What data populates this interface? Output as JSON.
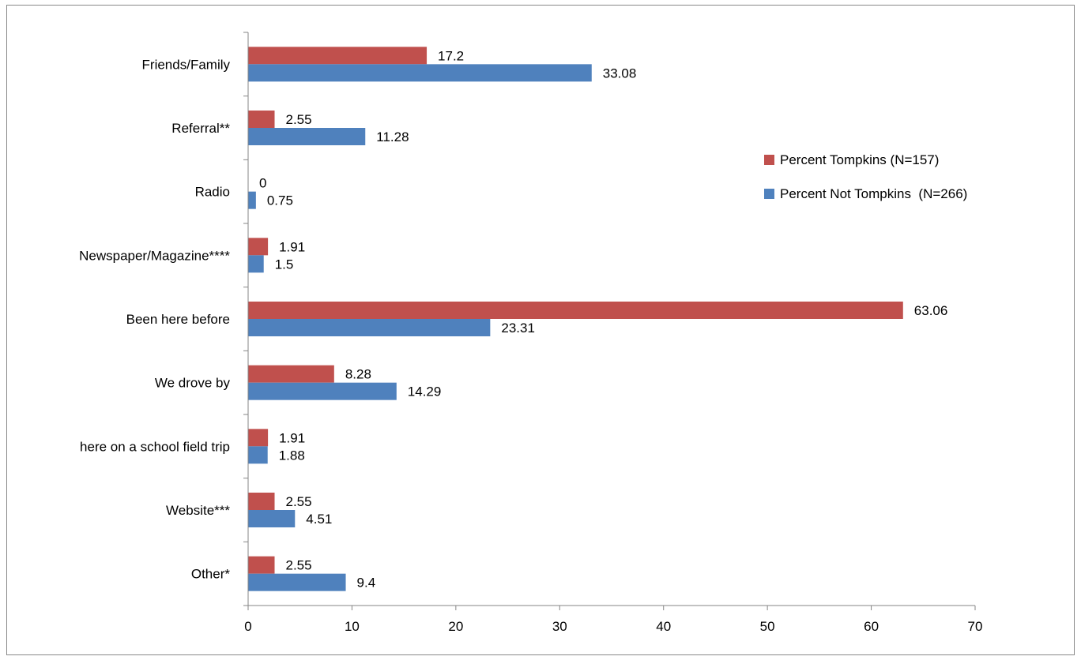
{
  "chart_data": {
    "type": "bar",
    "orientation": "horizontal",
    "categories": [
      "Friends/Family",
      "Referral**",
      "Radio",
      "Newspaper/Magazine****",
      "Been here before",
      "We drove by",
      "here on a school field trip",
      "Website***",
      "Other*"
    ],
    "series": [
      {
        "name": "Percent Tompkins (N=157)",
        "color": "#c0504d",
        "values": [
          17.2,
          2.55,
          0,
          1.91,
          63.06,
          8.28,
          1.91,
          2.55,
          2.55
        ],
        "labels": [
          "17.2",
          "2.55",
          "0",
          "1.91",
          "63.06",
          "8.28",
          "1.91",
          "2.55",
          "2.55"
        ]
      },
      {
        "name": "Percent Not Tompkins  (N=266)",
        "color": "#4f81bd",
        "values": [
          33.08,
          11.28,
          0.75,
          1.5,
          23.31,
          14.29,
          1.88,
          4.51,
          9.4
        ],
        "labels": [
          "33.08",
          "11.28",
          "0.75",
          "1.5",
          "23.31",
          "14.29",
          "1.88",
          "4.51",
          "9.4"
        ]
      }
    ],
    "xlim": [
      0,
      70
    ],
    "ticks": [
      "0",
      "10",
      "20",
      "30",
      "40",
      "50",
      "60",
      "70"
    ],
    "grid": false,
    "legend_position": "right"
  }
}
